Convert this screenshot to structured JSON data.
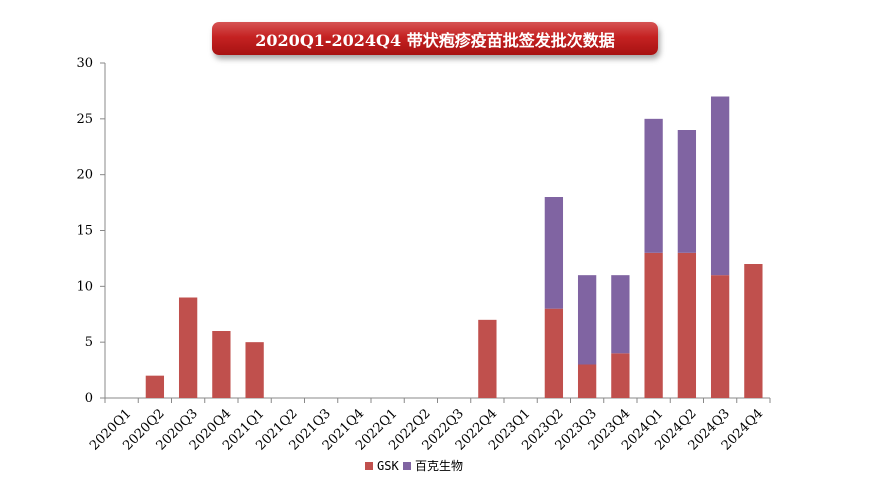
{
  "chart_data": {
    "type": "bar",
    "stacked": true,
    "title": "2020Q1-2024Q4 带状疱疹疫苗批签发批次数据",
    "categories": [
      "2020Q1",
      "2020Q2",
      "2020Q3",
      "2020Q4",
      "2021Q1",
      "2021Q2",
      "2021Q3",
      "2021Q4",
      "2022Q1",
      "2022Q2",
      "2022Q3",
      "2022Q4",
      "2023Q1",
      "2023Q2",
      "2023Q3",
      "2023Q4",
      "2024Q1",
      "2024Q2",
      "2024Q3",
      "2024Q4"
    ],
    "series": [
      {
        "name": "GSK",
        "color": "#c0504d",
        "values": [
          0,
          2,
          9,
          6,
          5,
          0,
          0,
          0,
          0,
          0,
          0,
          7,
          0,
          8,
          3,
          4,
          13,
          13,
          11,
          12
        ]
      },
      {
        "name": "百克生物",
        "color": "#8064a2",
        "values": [
          0,
          0,
          0,
          0,
          0,
          0,
          0,
          0,
          0,
          0,
          0,
          0,
          0,
          10,
          8,
          7,
          12,
          11,
          16,
          0
        ]
      }
    ],
    "ylim": [
      0,
      30
    ],
    "yticks": [
      0,
      5,
      10,
      15,
      20,
      25,
      30
    ],
    "xlabel": "",
    "ylabel": "",
    "grid": false,
    "legend_position": "bottom"
  }
}
